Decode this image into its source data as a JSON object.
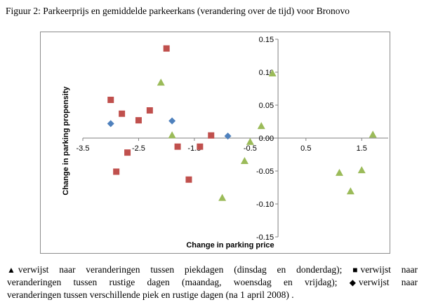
{
  "figure_title": "Figuur 2: Parkeerprijs en gemiddelde parkeerkans (verandering over de tijd) voor Bronovo",
  "chart_data": {
    "type": "scatter",
    "title": "",
    "xlabel": "Change in parking price",
    "ylabel": "Change in parking propensity",
    "xlim": [
      -3.5,
      2.0
    ],
    "ylim": [
      -0.15,
      0.15
    ],
    "x_ticks": [
      -3.5,
      -2.5,
      -1.5,
      -0.5,
      0.5,
      1.5
    ],
    "x_tick_labels": [
      "-3.5",
      "-2.5",
      "-1.5",
      "-0.5",
      "0.5",
      "1.5"
    ],
    "y_ticks": [
      0.15,
      0.1,
      0.05,
      0.0,
      -0.05,
      -0.1,
      -0.15
    ],
    "y_tick_labels": [
      "0.15",
      "0.10",
      "0.05",
      "0.00",
      "-0.05",
      "-0.10",
      "-0.15"
    ],
    "grid": false,
    "series": [
      {
        "name": "piekdagen",
        "marker": "triangle",
        "color": "#9bbb59",
        "points": [
          {
            "x": -2.1,
            "y": 0.085
          },
          {
            "x": -1.9,
            "y": 0.005
          },
          {
            "x": -1.0,
            "y": -0.09
          },
          {
            "x": -0.6,
            "y": -0.034
          },
          {
            "x": -0.5,
            "y": -0.005
          },
          {
            "x": -0.3,
            "y": 0.019
          },
          {
            "x": -0.1,
            "y": 0.099
          },
          {
            "x": 1.1,
            "y": -0.052
          },
          {
            "x": 1.3,
            "y": -0.08
          },
          {
            "x": 1.5,
            "y": -0.048
          },
          {
            "x": 1.7,
            "y": 0.006
          }
        ]
      },
      {
        "name": "rustige dagen",
        "marker": "square",
        "color": "#c0504d",
        "points": [
          {
            "x": -3.0,
            "y": 0.058
          },
          {
            "x": -2.8,
            "y": 0.037
          },
          {
            "x": -2.5,
            "y": 0.027
          },
          {
            "x": -2.3,
            "y": 0.042
          },
          {
            "x": -2.0,
            "y": 0.136
          },
          {
            "x": -1.8,
            "y": -0.013
          },
          {
            "x": -1.6,
            "y": -0.063
          },
          {
            "x": -1.4,
            "y": -0.013
          },
          {
            "x": -1.2,
            "y": 0.004
          },
          {
            "x": -2.7,
            "y": -0.022
          },
          {
            "x": -2.9,
            "y": -0.051
          }
        ]
      },
      {
        "name": "verschillende piek en rustige dagen",
        "marker": "diamond",
        "color": "#4f81bd",
        "points": [
          {
            "x": -3.0,
            "y": 0.022
          },
          {
            "x": -1.9,
            "y": 0.026
          },
          {
            "x": -0.9,
            "y": 0.003
          }
        ]
      }
    ]
  },
  "legend_text": {
    "line1_a": "verwijst naar veranderingen tussen piekdagen (dinsdag en donderdag);",
    "line1_b": "verwijst naar",
    "line2_a": "veranderingen tussen rustige dagen (maandag, woensdag en vrijdag);",
    "line2_b": "verwijst naar",
    "line3": "veranderingen tussen verschillende piek en rustige dagen (na 1 april 2008) ."
  },
  "legend_symbols": {
    "triangle": "▲",
    "square": "■",
    "diamond": "◆"
  }
}
